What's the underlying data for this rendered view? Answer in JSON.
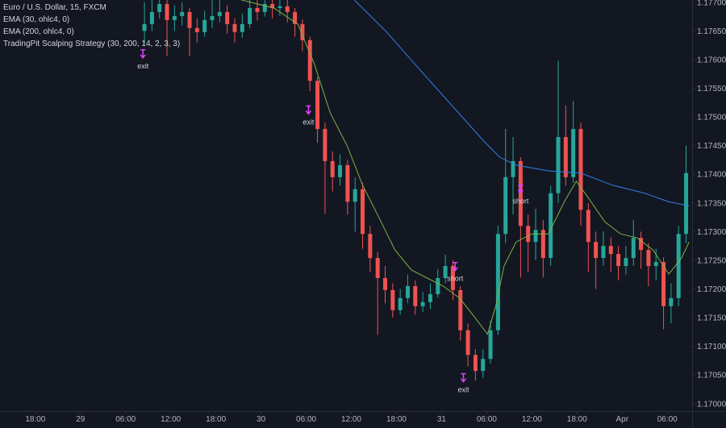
{
  "chart_data": {
    "type": "candlestick",
    "legend": [
      "Euro / U.S. Dollar, 15, FXCM",
      "EMA (30, ohlc4, 0)",
      "EMA (200, ohlc4, 0)",
      "TradingPit Scalping Strategy (30, 200, 14, 2, 3, 3)"
    ],
    "up_color": "#26a69a",
    "down_color": "#ef5350",
    "xlim": [
      -4.7,
      87.3
    ],
    "xticks": [
      {
        "value": 0,
        "label": "18:00"
      },
      {
        "value": 6,
        "label": "29"
      },
      {
        "value": 12,
        "label": "06:00"
      },
      {
        "value": 18,
        "label": "12:00"
      },
      {
        "value": 24,
        "label": "18:00"
      },
      {
        "value": 30,
        "label": "30"
      },
      {
        "value": 36,
        "label": "06:00"
      },
      {
        "value": 42,
        "label": "12:00"
      },
      {
        "value": 48,
        "label": "18:00"
      },
      {
        "value": 54,
        "label": "31"
      },
      {
        "value": 60,
        "label": "06:00"
      },
      {
        "value": 66,
        "label": "12:00"
      },
      {
        "value": 72,
        "label": "18:00"
      },
      {
        "value": 78,
        "label": "Apr"
      },
      {
        "value": 84,
        "label": "06:00"
      }
    ],
    "ylim": [
      1.16987,
      1.17704
    ],
    "yticks": [
      {
        "value": 1.17,
        "label": "1.17000"
      },
      {
        "value": 1.1705,
        "label": "1.17050"
      },
      {
        "value": 1.171,
        "label": "1.17100"
      },
      {
        "value": 1.1715,
        "label": "1.17150"
      },
      {
        "value": 1.172,
        "label": "1.17200"
      },
      {
        "value": 1.1725,
        "label": "1.17250"
      },
      {
        "value": 1.173,
        "label": "1.17300"
      },
      {
        "value": 1.1735,
        "label": "1.17350"
      },
      {
        "value": 1.174,
        "label": "1.17400"
      },
      {
        "value": 1.1745,
        "label": "1.17450"
      },
      {
        "value": 1.175,
        "label": "1.17500"
      },
      {
        "value": 1.1755,
        "label": "1.17550"
      },
      {
        "value": 1.176,
        "label": "1.17600"
      },
      {
        "value": 1.1765,
        "label": "1.17650"
      },
      {
        "value": 1.177,
        "label": "1.17700"
      }
    ],
    "x": [
      14.5,
      15.5,
      16.5,
      17.5,
      18.5,
      19.5,
      20.5,
      21.5,
      22.5,
      23.5,
      24.5,
      25.5,
      26.5,
      27.5,
      28.5,
      29.5,
      30.5,
      31.5,
      32.5,
      33.5,
      34.5,
      35.5,
      36.5,
      37.5,
      38.5,
      39.5,
      40.5,
      41.5,
      42.5,
      43.5,
      44.5,
      45.5,
      46.5,
      47.5,
      48.5,
      49.5,
      50.5,
      51.5,
      52.5,
      53.5,
      54.5,
      55.5,
      56.5,
      57.5,
      58.5,
      59.5,
      60.5,
      61.5,
      62.5,
      63.5,
      64.5,
      65.5,
      66.5,
      67.5,
      68.5,
      69.5,
      70.5,
      71.5,
      72.5,
      73.5,
      74.5,
      75.5,
      76.5,
      77.5,
      78.5,
      79.5,
      80.5,
      81.5,
      82.5,
      83.5,
      84.5,
      85.5,
      86.5
    ],
    "open": [
      1.1765,
      1.17662,
      1.17683,
      1.17697,
      1.17669,
      1.17676,
      1.17683,
      1.17655,
      1.17648,
      1.17669,
      1.17676,
      1.17683,
      1.17662,
      1.17648,
      1.17662,
      1.1769,
      1.17683,
      1.17697,
      1.1769,
      1.17693,
      1.17683,
      1.17662,
      1.17634,
      1.17563,
      1.17479,
      1.17423,
      1.17395,
      1.17416,
      1.17352,
      1.17374,
      1.17296,
      1.17254,
      1.17219,
      1.17198,
      1.17163,
      1.17184,
      1.17205,
      1.1717,
      1.17177,
      1.17191,
      1.17219,
      1.1724,
      1.17198,
      1.17128,
      1.17085,
      1.17057,
      1.17078,
      1.17128,
      1.17296,
      1.17395,
      1.17423,
      1.1731,
      1.17282,
      1.17303,
      1.17254,
      1.17367,
      1.17465,
      1.17395,
      1.17479,
      1.17338,
      1.17282,
      1.17254,
      1.17275,
      1.17261,
      1.1724,
      1.17254,
      1.17289,
      1.17268,
      1.1724,
      1.17247,
      1.1717,
      1.17184,
      1.17296
    ],
    "high": [
      1.177,
      1.17704,
      1.17704,
      1.17704,
      1.17695,
      1.177,
      1.1769,
      1.17672,
      1.17685,
      1.17704,
      1.17704,
      1.17695,
      1.17672,
      1.1768,
      1.17704,
      1.17704,
      1.17704,
      1.17704,
      1.17704,
      1.17704,
      1.1769,
      1.1767,
      1.1764,
      1.1757,
      1.1749,
      1.1744,
      1.17435,
      1.17425,
      1.17395,
      1.17385,
      1.1731,
      1.17265,
      1.1724,
      1.1721,
      1.172,
      1.17225,
      1.17215,
      1.17195,
      1.1721,
      1.17235,
      1.1726,
      1.1725,
      1.17205,
      1.1714,
      1.17095,
      1.17095,
      1.17145,
      1.1731,
      1.17479,
      1.17465,
      1.1743,
      1.1733,
      1.1734,
      1.1732,
      1.1738,
      1.17598,
      1.1752,
      1.17528,
      1.1749,
      1.1735,
      1.173,
      1.173,
      1.1729,
      1.17275,
      1.17275,
      1.1732,
      1.173,
      1.1728,
      1.1727,
      1.17255,
      1.1721,
      1.1731,
      1.1745
    ],
    "low": [
      1.17628,
      1.1765,
      1.17672,
      1.17606,
      1.1765,
      1.1766,
      1.17606,
      1.1763,
      1.1764,
      1.17655,
      1.17665,
      1.17645,
      1.1763,
      1.17638,
      1.17655,
      1.17668,
      1.17675,
      1.17672,
      1.17676,
      1.17665,
      1.1764,
      1.17615,
      1.17545,
      1.17455,
      1.17331,
      1.1737,
      1.1738,
      1.1733,
      1.173,
      1.1727,
      1.1723,
      1.1712,
      1.17175,
      1.1715,
      1.17155,
      1.17175,
      1.17155,
      1.1716,
      1.17165,
      1.17185,
      1.1721,
      1.1718,
      1.1711,
      1.17065,
      1.1704,
      1.17045,
      1.1707,
      1.1712,
      1.1728,
      1.1733,
      1.1722,
      1.1723,
      1.1725,
      1.1722,
      1.1724,
      1.1735,
      1.1738,
      1.17385,
      1.1731,
      1.1723,
      1.172,
      1.1724,
      1.1723,
      1.17215,
      1.17225,
      1.1724,
      1.17235,
      1.17205,
      1.17215,
      1.1713,
      1.1714,
      1.1717,
      1.1728
    ],
    "close": [
      1.17662,
      1.17683,
      1.17697,
      1.17669,
      1.17676,
      1.17683,
      1.17655,
      1.17648,
      1.17669,
      1.17676,
      1.17683,
      1.17662,
      1.17648,
      1.17662,
      1.1769,
      1.17683,
      1.17697,
      1.1769,
      1.17693,
      1.17683,
      1.17662,
      1.17634,
      1.17563,
      1.17479,
      1.17423,
      1.17395,
      1.17416,
      1.17352,
      1.17374,
      1.17296,
      1.17254,
      1.17219,
      1.17198,
      1.17163,
      1.17184,
      1.17205,
      1.1717,
      1.17177,
      1.17191,
      1.17219,
      1.1724,
      1.17198,
      1.17128,
      1.17085,
      1.17057,
      1.17078,
      1.17128,
      1.17296,
      1.17395,
      1.17423,
      1.1731,
      1.17282,
      1.17303,
      1.17254,
      1.17367,
      1.17465,
      1.17395,
      1.17479,
      1.17338,
      1.17282,
      1.17254,
      1.17275,
      1.17261,
      1.1724,
      1.17254,
      1.17289,
      1.17268,
      1.1724,
      1.17247,
      1.1717,
      1.17184,
      1.17296,
      1.17402
    ],
    "lines": [
      {
        "color": "#7cb342",
        "x": [
          27.4,
          31.7,
          34.9,
          37.1,
          39.2,
          41.4,
          43.5,
          45.7,
          47.8,
          50.0,
          52.1,
          54.2,
          56.4,
          58.5,
          60.1,
          61.2,
          62.3,
          63.9,
          66.0,
          68.2,
          70.3,
          71.9,
          73.5,
          75.7,
          77.8,
          80.0,
          82.1,
          84.2,
          85.9,
          86.9
        ],
        "values": [
          1.17704,
          1.1769,
          1.17662,
          1.17592,
          1.17507,
          1.17451,
          1.17381,
          1.17324,
          1.17268,
          1.17233,
          1.17219,
          1.17205,
          1.17184,
          1.17149,
          1.17121,
          1.1717,
          1.1724,
          1.17282,
          1.17296,
          1.17296,
          1.17352,
          1.17388,
          1.17359,
          1.17317,
          1.17296,
          1.17289,
          1.17268,
          1.17226,
          1.17254,
          1.17282
        ]
      },
      {
        "color": "#2f80ed",
        "x": [
          42.4,
          46.7,
          51.0,
          55.3,
          59.6,
          61.7,
          63.9,
          68.2,
          72.5,
          76.7,
          81.0,
          84.2,
          86.9
        ],
        "values": [
          1.17704,
          1.17648,
          1.17584,
          1.17521,
          1.17458,
          1.1743,
          1.17416,
          1.17406,
          1.17402,
          1.17381,
          1.17367,
          1.17352,
          1.17345
        ]
      }
    ],
    "annotations": [
      {
        "text": "exit",
        "x": 14.3,
        "price": 1.17589
      },
      {
        "text": "exit",
        "x": 36.3,
        "price": 1.17491
      },
      {
        "text": "short",
        "x": 55.8,
        "price": 1.17218
      },
      {
        "text": "short",
        "x": 64.5,
        "price": 1.17353
      },
      {
        "text": "exit",
        "x": 56.9,
        "price": 1.17024
      }
    ]
  }
}
